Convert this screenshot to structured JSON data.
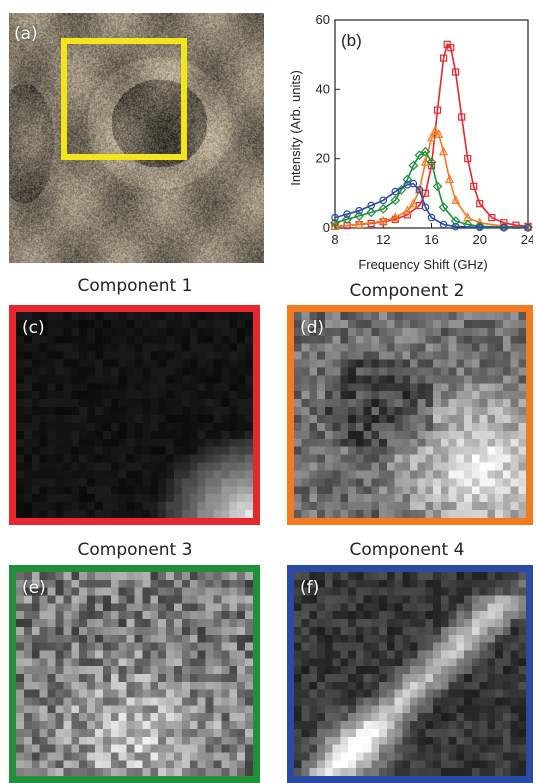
{
  "panels": {
    "a": {
      "label": "(a)"
    },
    "b": {
      "label": "(b)"
    },
    "c": {
      "label": "(c)",
      "caption": "Component 1",
      "border_color": "#e8262d"
    },
    "d": {
      "label": "(d)",
      "caption": "Component 2",
      "border_color": "#f47a20"
    },
    "e": {
      "label": "(e)",
      "caption": "Component 3",
      "border_color": "#1f8f3a"
    },
    "f": {
      "label": "(f)",
      "caption": "Component 4",
      "border_color": "#2a4aa6"
    }
  },
  "colors": {
    "roi_box": "#f2e61a"
  },
  "chart_data": {
    "type": "line",
    "xlabel": "Frequency Shift (GHz)",
    "ylabel": "Intensity (Arb. units)",
    "xlim": [
      8,
      24
    ],
    "ylim": [
      0,
      60
    ],
    "xticks": [
      8,
      12,
      16,
      20,
      24
    ],
    "yticks": [
      0,
      20,
      40,
      60
    ],
    "grid": false,
    "series": [
      {
        "color": "#e8262d",
        "marker": "square",
        "x": [
          8,
          9,
          10,
          11,
          12,
          13,
          14,
          15,
          15.5,
          16,
          16.5,
          17,
          17.3,
          17.6,
          18,
          18.5,
          19,
          19.5,
          20,
          21,
          22,
          23,
          24
        ],
        "y": [
          0.5,
          0.7,
          1,
          1.3,
          1.8,
          2.5,
          3.8,
          6.5,
          10,
          18,
          34,
          49,
          53,
          52,
          45,
          32,
          20,
          12,
          7,
          3,
          1.5,
          0.8,
          0.5
        ]
      },
      {
        "color": "#f47a20",
        "marker": "triangle",
        "x": [
          8,
          10,
          12,
          13,
          14,
          14.5,
          15,
          15.5,
          16,
          16.3,
          16.6,
          17,
          17.5,
          18,
          19,
          20,
          22,
          24
        ],
        "y": [
          0.5,
          1,
          2,
          3,
          5,
          7,
          11,
          19,
          26,
          28,
          27,
          22,
          14,
          8,
          3,
          1.5,
          0.5,
          0.2
        ]
      },
      {
        "color": "#1f8f3a",
        "marker": "diamond",
        "x": [
          8,
          9,
          10,
          11,
          12,
          13,
          13.5,
          14,
          14.5,
          15,
          15.5,
          16,
          16.5,
          17,
          18,
          19,
          20,
          22,
          24
        ],
        "y": [
          1.5,
          2.5,
          3.5,
          4.5,
          5.5,
          8,
          11,
          14,
          18,
          21,
          22,
          19,
          12,
          6,
          2,
          1,
          0.5,
          0.3,
          0.2
        ]
      },
      {
        "color": "#2a4aa6",
        "marker": "circle",
        "x": [
          8,
          9,
          10,
          11,
          12,
          13,
          14,
          14.5,
          15,
          15.5,
          16,
          17,
          18,
          20,
          22,
          24
        ],
        "y": [
          3,
          4,
          5,
          6.5,
          8,
          10.5,
          12.5,
          12.8,
          11,
          6,
          3,
          1,
          0.4,
          0.2,
          0.1,
          0.1
        ]
      }
    ]
  }
}
